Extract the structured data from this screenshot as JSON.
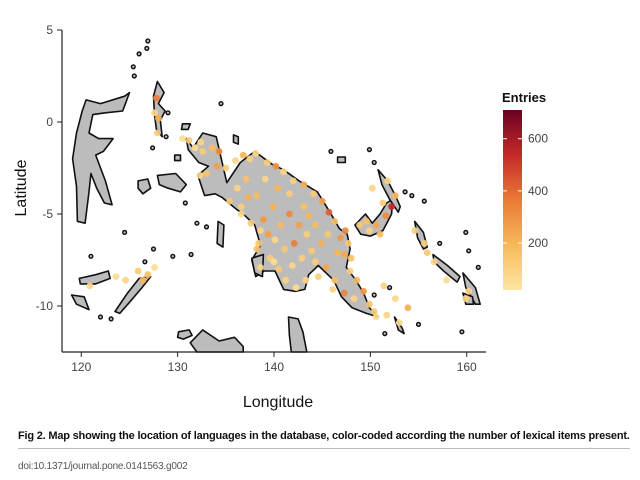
{
  "chart_data": {
    "type": "map",
    "xlabel": "Longitude",
    "ylabel": "Latitude",
    "xlim": [
      118,
      162
    ],
    "ylim": [
      -12.5,
      5
    ],
    "x_ticks": [
      120,
      130,
      140,
      150,
      160
    ],
    "y_ticks": [
      5,
      0,
      -5,
      -10
    ],
    "grid": false,
    "legend": {
      "title": "Entries",
      "placement": "right",
      "min": 20,
      "max": 710,
      "ticks": [
        200,
        400,
        600
      ],
      "colors": [
        "#fde6a3",
        "#f7b95a",
        "#ea7a35",
        "#c52a2a",
        "#6a0022"
      ]
    },
    "land_color": "#bcbcbc",
    "outline_color": "#111111",
    "points": [
      [
        127.8,
        1.3,
        350
      ],
      [
        128.0,
        0.2,
        220
      ],
      [
        127.6,
        0.5,
        80
      ],
      [
        127.9,
        -0.6,
        120
      ],
      [
        130.5,
        -0.9,
        60
      ],
      [
        131.2,
        -1.0,
        120
      ],
      [
        132.4,
        -1.1,
        90
      ],
      [
        133.6,
        -1.4,
        180
      ],
      [
        134.3,
        -1.6,
        320
      ],
      [
        132.6,
        -1.6,
        120
      ],
      [
        131.8,
        -1.4,
        60
      ],
      [
        133.0,
        -2.8,
        150
      ],
      [
        132.3,
        -2.9,
        80
      ],
      [
        134.1,
        -2.4,
        260
      ],
      [
        135.0,
        -2.5,
        120
      ],
      [
        136.0,
        -2.1,
        80
      ],
      [
        136.8,
        -1.8,
        200
      ],
      [
        137.5,
        -2.0,
        100
      ],
      [
        138.1,
        -1.7,
        80
      ],
      [
        139.3,
        -2.2,
        120
      ],
      [
        140.2,
        -2.4,
        300
      ],
      [
        141.0,
        -2.7,
        80
      ],
      [
        142.0,
        -3.2,
        110
      ],
      [
        143.1,
        -3.4,
        220
      ],
      [
        144.1,
        -3.9,
        130
      ],
      [
        145.0,
        -4.3,
        260
      ],
      [
        145.7,
        -4.9,
        420
      ],
      [
        146.3,
        -5.4,
        180
      ],
      [
        147.4,
        -5.9,
        320
      ],
      [
        147.7,
        -6.6,
        140
      ],
      [
        147.3,
        -7.2,
        240
      ],
      [
        147.9,
        -8.1,
        100
      ],
      [
        148.6,
        -8.6,
        200
      ],
      [
        149.3,
        -9.2,
        280
      ],
      [
        149.9,
        -9.9,
        150
      ],
      [
        150.4,
        -10.3,
        120
      ],
      [
        148.3,
        -9.6,
        90
      ],
      [
        147.3,
        -9.3,
        340
      ],
      [
        146.3,
        -8.6,
        160
      ],
      [
        145.4,
        -7.9,
        250
      ],
      [
        144.3,
        -7.6,
        120
      ],
      [
        143.3,
        -8.6,
        80
      ],
      [
        142.3,
        -9.0,
        60
      ],
      [
        141.2,
        -8.6,
        100
      ],
      [
        140.5,
        -8.0,
        140
      ],
      [
        139.6,
        -7.4,
        120
      ],
      [
        138.6,
        -7.9,
        90
      ],
      [
        138.2,
        -6.9,
        160
      ],
      [
        138.9,
        -5.3,
        280
      ],
      [
        139.9,
        -4.6,
        220
      ],
      [
        140.7,
        -5.6,
        180
      ],
      [
        141.6,
        -5.0,
        320
      ],
      [
        142.6,
        -5.6,
        260
      ],
      [
        143.4,
        -6.1,
        120
      ],
      [
        144.3,
        -5.6,
        180
      ],
      [
        144.9,
        -6.6,
        220
      ],
      [
        142.1,
        -6.6,
        360
      ],
      [
        141.1,
        -6.9,
        140
      ],
      [
        140.1,
        -6.4,
        80
      ],
      [
        137.3,
        -4.1,
        220
      ],
      [
        138.2,
        -4.0,
        180
      ],
      [
        136.2,
        -3.6,
        100
      ],
      [
        135.4,
        -4.3,
        140
      ],
      [
        136.6,
        -4.6,
        120
      ],
      [
        137.1,
        -3.1,
        160
      ],
      [
        139.1,
        -3.1,
        90
      ],
      [
        140.4,
        -3.6,
        200
      ],
      [
        141.6,
        -3.9,
        120
      ],
      [
        143.1,
        -4.6,
        160
      ],
      [
        145.6,
        -6.1,
        140
      ],
      [
        146.6,
        -7.1,
        200
      ],
      [
        144.6,
        -8.4,
        110
      ],
      [
        146.1,
        -9.1,
        90
      ],
      [
        143.9,
        -7.0,
        130
      ],
      [
        142.9,
        -7.4,
        110
      ],
      [
        139.4,
        -6.1,
        260
      ],
      [
        138.6,
        -5.9,
        100
      ],
      [
        137.6,
        -5.5,
        120
      ],
      [
        149.6,
        -5.4,
        160
      ],
      [
        150.6,
        -5.6,
        240
      ],
      [
        151.6,
        -5.1,
        320
      ],
      [
        152.2,
        -4.6,
        540
      ],
      [
        151.3,
        -4.4,
        120
      ],
      [
        150.2,
        -3.6,
        80
      ],
      [
        149.9,
        -5.9,
        100
      ],
      [
        148.9,
        -5.6,
        140
      ],
      [
        151.0,
        -6.1,
        180
      ],
      [
        152.6,
        -4.0,
        200
      ],
      [
        151.8,
        -3.2,
        90
      ],
      [
        154.6,
        -5.9,
        100
      ],
      [
        155.6,
        -6.6,
        120
      ],
      [
        156.6,
        -7.6,
        80
      ],
      [
        155.9,
        -7.1,
        140
      ],
      [
        159.9,
        -9.6,
        100
      ],
      [
        160.2,
        -9.2,
        80
      ],
      [
        157.9,
        -8.6,
        60
      ],
      [
        123.6,
        -8.4,
        60
      ],
      [
        124.6,
        -8.6,
        90
      ],
      [
        125.9,
        -8.1,
        120
      ],
      [
        127.6,
        -7.9,
        60
      ],
      [
        120.9,
        -8.9,
        80
      ],
      [
        126.4,
        -8.6,
        200
      ],
      [
        126.9,
        -8.3,
        160
      ],
      [
        153.9,
        -10.1,
        220
      ],
      [
        152.6,
        -9.6,
        80
      ],
      [
        151.4,
        -8.9,
        100
      ],
      [
        150.6,
        -10.6,
        60
      ],
      [
        151.7,
        -10.5,
        90
      ],
      [
        153.0,
        -10.9,
        70
      ],
      [
        136.6,
        -5.0,
        70
      ],
      [
        138.4,
        -6.6,
        140
      ],
      [
        140.0,
        -7.6,
        60
      ],
      [
        141.9,
        -7.8,
        90
      ],
      [
        143.6,
        -5.1,
        200
      ],
      [
        146.9,
        -6.3,
        280
      ],
      [
        148.0,
        -7.4,
        160
      ]
    ]
  },
  "caption": "Fig 2. Map showing the location of languages in the database, color-coded according the number of lexical items present.",
  "doi": "doi:10.1371/journal.pone.0141563.g002"
}
